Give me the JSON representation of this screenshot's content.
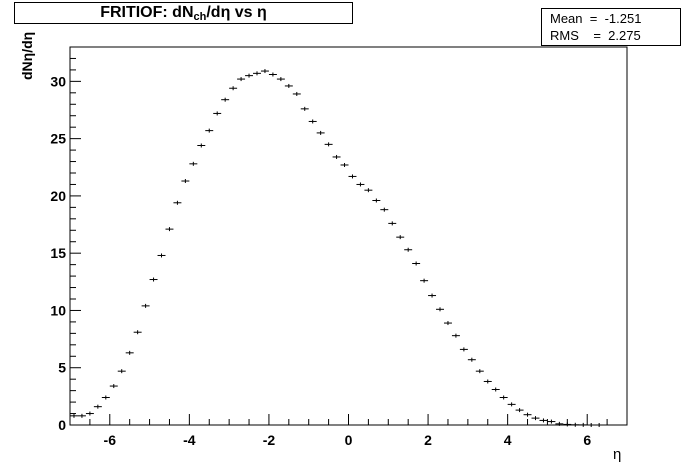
{
  "header": {
    "title_prefix": "FRITIOF: dN",
    "title_sub": "ch",
    "title_suffix": "/dη vs η"
  },
  "stats": {
    "mean_label": "Mean",
    "mean_value": "-1.251",
    "rms_label": "RMS",
    "rms_value": "2.275"
  },
  "colors": {
    "marker": "#000000",
    "frame": "#000000",
    "background": "#ffffff"
  },
  "chart_data": {
    "type": "scatter",
    "title": "FRITIOF: dNch/dη vs η",
    "xlabel": "η",
    "ylabel": "dNη/dη",
    "xlim": [
      -7,
      7
    ],
    "ylim": [
      0,
      33
    ],
    "x_ticks": [
      -6,
      -4,
      -2,
      0,
      2,
      4,
      6
    ],
    "y_ticks": [
      0,
      5,
      10,
      15,
      20,
      25,
      30
    ],
    "bin_width": 0.2,
    "grid": false,
    "legend": "none",
    "series": [
      {
        "x": [
          -6.9,
          -6.7,
          -6.5,
          -6.3,
          -6.1,
          -5.9,
          -5.7,
          -5.5,
          -5.3,
          -5.1,
          -4.9,
          -4.7,
          -4.5,
          -4.3,
          -4.1,
          -3.9,
          -3.7,
          -3.5,
          -3.3,
          -3.1,
          -2.9,
          -2.7,
          -2.5,
          -2.3,
          -2.1,
          -1.9,
          -1.7,
          -1.5,
          -1.3,
          -1.1,
          -0.9,
          -0.7,
          -0.5,
          -0.3,
          -0.1,
          0.1,
          0.3,
          0.5,
          0.7,
          0.9,
          1.1,
          1.3,
          1.5,
          1.7,
          1.9,
          2.1,
          2.3,
          2.5,
          2.7,
          2.9,
          3.1,
          3.3,
          3.5,
          3.7,
          3.9,
          4.1,
          4.3,
          4.5,
          4.7,
          4.9,
          5.1,
          5.3,
          5.5,
          5.7,
          5.9,
          6.1,
          6.3
        ],
        "y": [
          0.8,
          0.8,
          1.0,
          1.6,
          2.4,
          3.4,
          4.7,
          6.3,
          8.1,
          10.4,
          12.7,
          14.8,
          17.1,
          19.4,
          21.3,
          22.8,
          24.4,
          25.7,
          27.2,
          28.4,
          29.4,
          30.2,
          30.5,
          30.7,
          30.9,
          30.6,
          30.2,
          29.6,
          28.9,
          27.6,
          26.5,
          25.5,
          24.5,
          23.4,
          22.7,
          21.7,
          21.0,
          20.5,
          19.6,
          18.8,
          17.6,
          16.4,
          15.3,
          14.1,
          12.6,
          11.3,
          10.1,
          8.9,
          7.8,
          6.6,
          5.7,
          4.7,
          3.8,
          3.1,
          2.4,
          1.8,
          1.3,
          0.9,
          0.6,
          0.4,
          0.3,
          0.1,
          0.05,
          0.02,
          0.01,
          0.0,
          0.0
        ]
      }
    ]
  }
}
